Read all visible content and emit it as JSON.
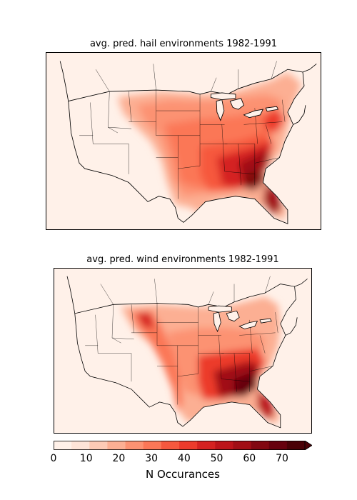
{
  "panels": [
    {
      "title": "avg. pred. hail environments 1982-1991",
      "field": "hail"
    },
    {
      "title": "avg. pred. wind environments 1982-1991",
      "field": "wind"
    }
  ],
  "colorbar": {
    "label": "N Occurances",
    "ticks": [
      "0",
      "10",
      "20",
      "30",
      "40",
      "50",
      "60",
      "70"
    ],
    "levels": [
      0,
      5,
      10,
      15,
      20,
      25,
      30,
      35,
      40,
      45,
      50,
      55,
      60,
      65,
      70
    ],
    "colors": [
      "#fff1e9",
      "#fee4d8",
      "#fdcab5",
      "#fcaf93",
      "#fc9272",
      "#fb7757",
      "#f6583e",
      "#ec3b2c",
      "#d52221",
      "#bc141a",
      "#a10e15",
      "#820711",
      "#67000d",
      "#4a0006"
    ],
    "extend": "max",
    "cmap": "Reds"
  },
  "map_data": {
    "region": "Contiguous United States and southern Canada",
    "hail_high_areas": [
      "Florida",
      "Georgia",
      "South Carolina",
      "North Carolina",
      "Alabama",
      "Mississippi",
      "Louisiana",
      "Chesapeake Bay region"
    ],
    "wind_high_areas": [
      "Georgia",
      "Alabama",
      "Mississippi",
      "Louisiana",
      "Florida panhandle",
      "South Carolina",
      "North Carolina",
      "eastern Dakotas"
    ],
    "hail_peak_value": 70,
    "wind_peak_value": 70
  }
}
